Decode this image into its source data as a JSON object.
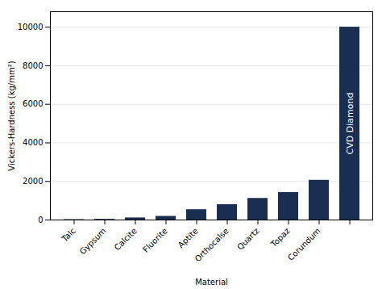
{
  "chart_data": {
    "type": "bar",
    "xlabel": "Material",
    "ylabel": "Vickers-Hardness (kg/mm²)",
    "categories": [
      "Talc",
      "Gypsum",
      "Calcite",
      "Fluorite",
      "Aptite",
      "Orthocalse",
      "Quartz",
      "Topaz",
      "Corundum",
      null
    ],
    "values": [
      20,
      36,
      109,
      189,
      536,
      795,
      1120,
      1427,
      2060,
      10000
    ],
    "color": "#1a2e52",
    "ylim": [
      0,
      10800
    ],
    "yticks": [
      0,
      2000,
      4000,
      6000,
      8000,
      10000
    ],
    "grid": true,
    "annotations": [
      {
        "text": "CVD Diamond",
        "color": "#ffffff"
      }
    ]
  }
}
